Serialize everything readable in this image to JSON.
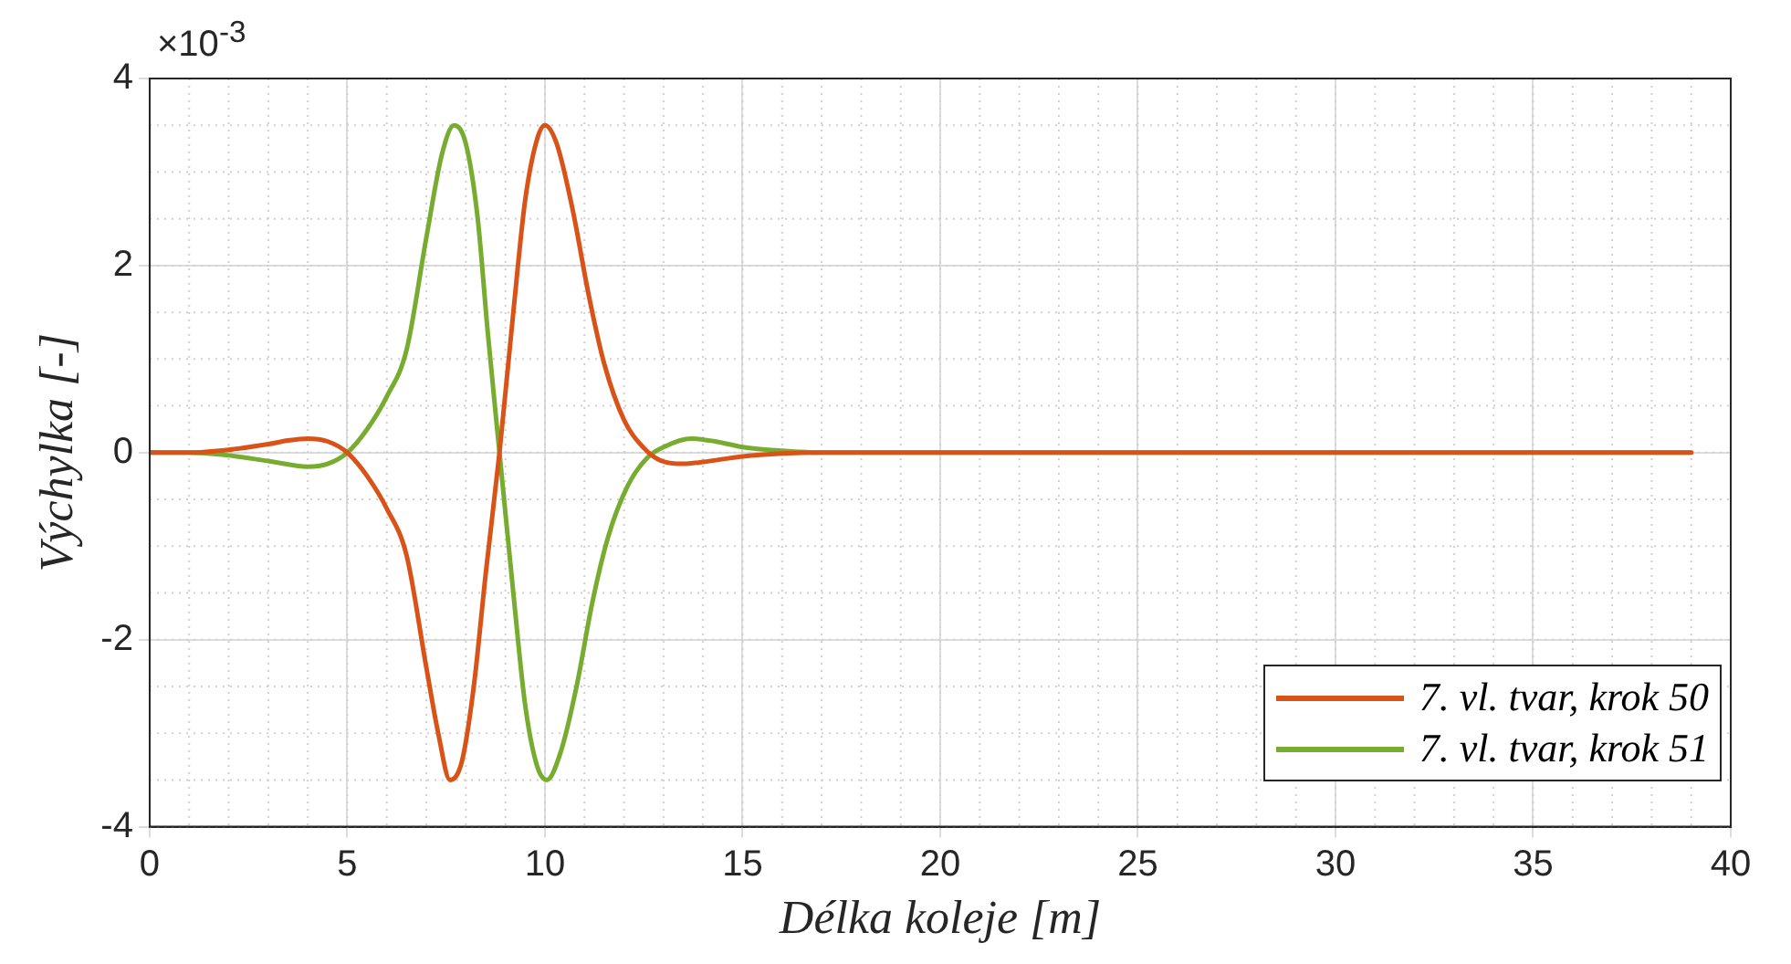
{
  "chart_data": {
    "type": "line",
    "xlabel": "Délka koleje [m]",
    "ylabel": "Výchylka [-]",
    "annotations": [
      "×10$^{-3}$"
    ],
    "xlim": [
      0,
      40
    ],
    "xticks": [
      0,
      5,
      10,
      15,
      20,
      25,
      30,
      35,
      40
    ],
    "ylim": [
      -4,
      4
    ],
    "yticks": [
      -4,
      -2,
      0,
      2,
      4
    ],
    "grid": true,
    "legend": "bottom right",
    "marker": "none",
    "line_style": "solid",
    "series": [
      {
        "name": "7. vl. tvar, krok 50",
        "color": "#d95319",
        "x": [
          0,
          1,
          2,
          3,
          3.5,
          4,
          4.5,
          5,
          5.5,
          6,
          6.5,
          7,
          7.3,
          7.6,
          7.9,
          8.2,
          8.5,
          8.85,
          9.2,
          9.5,
          9.8,
          10,
          10.3,
          10.7,
          11.1,
          11.5,
          12,
          12.5,
          12.9,
          13.5,
          14,
          15,
          16,
          17,
          20,
          39
        ],
        "values": [
          0,
          0,
          0.03,
          0.09,
          0.13,
          0.15,
          0.12,
          0,
          -0.25,
          -0.6,
          -1.1,
          -2.3,
          -3,
          -3.5,
          -3.3,
          -2.5,
          -1.3,
          0,
          1.5,
          2.7,
          3.35,
          3.5,
          3.3,
          2.6,
          1.7,
          0.95,
          0.35,
          0.05,
          -0.08,
          -0.12,
          -0.1,
          -0.04,
          -0.01,
          0,
          0,
          0
        ]
      },
      {
        "name": "7. vl. tvar, krok 51",
        "color": "#77ac30",
        "x": [
          0,
          1,
          2,
          3,
          4,
          4.5,
          5,
          5.5,
          6,
          6.5,
          7,
          7.4,
          7.7,
          8,
          8.3,
          8.55,
          8.85,
          9.2,
          9.5,
          9.8,
          10.05,
          10.4,
          10.8,
          11.2,
          11.6,
          12.1,
          12.6,
          13,
          13.7,
          14.3,
          15,
          16,
          17,
          20,
          39
        ],
        "values": [
          0,
          0,
          -0.03,
          -0.09,
          -0.15,
          -0.12,
          0,
          0.25,
          0.6,
          1.1,
          2.3,
          3.2,
          3.5,
          3.3,
          2.5,
          1.3,
          0,
          -1.5,
          -2.7,
          -3.35,
          -3.5,
          -3.2,
          -2.5,
          -1.6,
          -0.9,
          -0.35,
          -0.05,
          0.06,
          0.15,
          0.12,
          0.06,
          0.02,
          0,
          0,
          0
        ]
      }
    ]
  }
}
